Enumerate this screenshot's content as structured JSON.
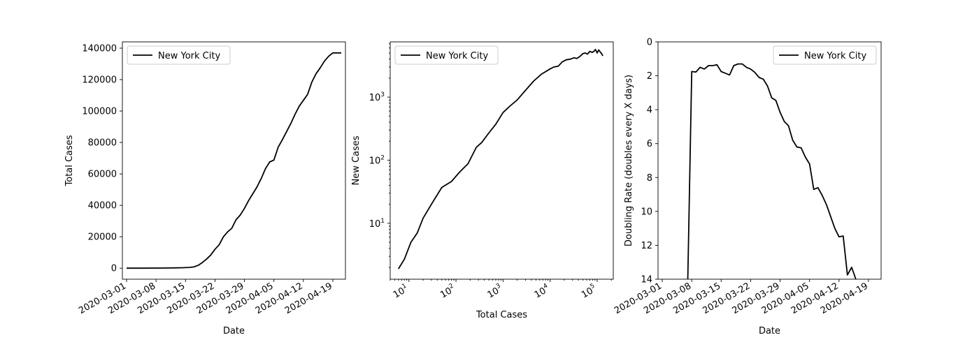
{
  "chart_data": [
    {
      "type": "line",
      "xlabel": "Date",
      "ylabel": "Total Cases",
      "x_scale": "date",
      "y_scale": "linear",
      "xlim": [
        "2020-02-29",
        "2020-04-22"
      ],
      "ylim": [
        -7000,
        144000
      ],
      "x_ticks": [
        "2020-03-01",
        "2020-03-08",
        "2020-03-15",
        "2020-03-22",
        "2020-03-29",
        "2020-04-05",
        "2020-04-12",
        "2020-04-19"
      ],
      "y_ticks": [
        0,
        20000,
        40000,
        60000,
        80000,
        100000,
        120000,
        140000
      ],
      "legend": "top-left",
      "grid": false,
      "series": [
        {
          "name": "New York City",
          "color": "#000000",
          "x": [
            "2020-03-01",
            "2020-03-05",
            "2020-03-10",
            "2020-03-14",
            "2020-03-16",
            "2020-03-17",
            "2020-03-18",
            "2020-03-19",
            "2020-03-20",
            "2020-03-21",
            "2020-03-22",
            "2020-03-23",
            "2020-03-24",
            "2020-03-25",
            "2020-03-26",
            "2020-03-27",
            "2020-03-28",
            "2020-03-29",
            "2020-03-30",
            "2020-03-31",
            "2020-04-01",
            "2020-04-02",
            "2020-04-03",
            "2020-04-04",
            "2020-04-05",
            "2020-04-06",
            "2020-04-07",
            "2020-04-08",
            "2020-04-09",
            "2020-04-10",
            "2020-04-11",
            "2020-04-12",
            "2020-04-13",
            "2020-04-14",
            "2020-04-15",
            "2020-04-16",
            "2020-04-17",
            "2020-04-18",
            "2020-04-19",
            "2020-04-20",
            "2020-04-21"
          ],
          "y": [
            0,
            0,
            100,
            300,
            500,
            800,
            1800,
            3600,
            5800,
            8400,
            12000,
            14900,
            20000,
            23100,
            25400,
            30800,
            33800,
            38000,
            43100,
            47400,
            51800,
            57100,
            63300,
            67600,
            68800,
            76900,
            81700,
            86800,
            92000,
            97800,
            103000,
            106800,
            110500,
            118300,
            123700,
            127500,
            131700,
            134800,
            137000,
            137000,
            137000
          ]
        }
      ]
    },
    {
      "type": "line",
      "xlabel": "Total Cases",
      "ylabel": "New Cases",
      "x_scale": "log",
      "y_scale": "log",
      "xlim": [
        4,
        220000
      ],
      "ylim": [
        1.3,
        7500
      ],
      "x_ticks": [
        10,
        100,
        1000,
        10000,
        100000
      ],
      "y_ticks": [
        10,
        100,
        1000
      ],
      "legend": "top-left",
      "grid": false,
      "series": [
        {
          "name": "New York City",
          "color": "#000000",
          "x": [
            6,
            8,
            11,
            15,
            20,
            30,
            50,
            80,
            120,
            180,
            270,
            350,
            500,
            700,
            1000,
            1400,
            2000,
            3000,
            4500,
            6500,
            10000,
            12000,
            15000,
            18000,
            22000,
            27000,
            32000,
            37000,
            43000,
            50000,
            56000,
            62000,
            70000,
            78000,
            86000,
            92000,
            100000,
            108000,
            116000,
            124000,
            132000
          ],
          "y": [
            1.9,
            2.7,
            5,
            7,
            12,
            20,
            37,
            46,
            65,
            88,
            160,
            190,
            270,
            370,
            570,
            720,
            900,
            1280,
            1800,
            2300,
            2800,
            3000,
            3100,
            3600,
            3900,
            4000,
            4200,
            4100,
            4400,
            4900,
            5000,
            4800,
            5300,
            5100,
            5300,
            5700,
            5000,
            5600,
            5200,
            4900,
            4500
          ]
        }
      ]
    },
    {
      "type": "line",
      "xlabel": "Date",
      "ylabel": "Doubling Rate (doubles every X days)",
      "x_scale": "date",
      "y_scale": "linear",
      "y_inverted": true,
      "xlim": [
        "2020-02-29",
        "2020-04-22"
      ],
      "ylim": [
        0,
        14
      ],
      "x_ticks": [
        "2020-03-01",
        "2020-03-08",
        "2020-03-15",
        "2020-03-22",
        "2020-03-29",
        "2020-04-05",
        "2020-04-12",
        "2020-04-19"
      ],
      "y_ticks": [
        0,
        2,
        4,
        6,
        8,
        10,
        12,
        14
      ],
      "legend": "top-right",
      "grid": false,
      "series": [
        {
          "name": "New York City",
          "color": "#000000",
          "x": [
            "2020-03-07",
            "2020-03-08",
            "2020-03-09",
            "2020-03-10",
            "2020-03-11",
            "2020-03-12",
            "2020-03-13",
            "2020-03-14",
            "2020-03-15",
            "2020-03-16",
            "2020-03-17",
            "2020-03-18",
            "2020-03-19",
            "2020-03-20",
            "2020-03-21",
            "2020-03-22",
            "2020-03-23",
            "2020-03-24",
            "2020-03-25",
            "2020-03-26",
            "2020-03-27",
            "2020-03-28",
            "2020-03-29",
            "2020-03-30",
            "2020-03-31",
            "2020-04-01",
            "2020-04-02",
            "2020-04-03",
            "2020-04-04",
            "2020-04-05",
            "2020-04-06",
            "2020-04-07",
            "2020-04-08",
            "2020-04-09",
            "2020-04-10",
            "2020-04-11",
            "2020-04-12",
            "2020-04-13",
            "2020-04-14",
            "2020-04-15",
            "2020-04-16"
          ],
          "y": [
            15,
            1.75,
            1.78,
            1.5,
            1.6,
            1.4,
            1.4,
            1.35,
            1.75,
            1.85,
            1.95,
            1.4,
            1.3,
            1.3,
            1.5,
            1.6,
            1.8,
            2.1,
            2.2,
            2.6,
            3.3,
            3.45,
            4.15,
            4.7,
            4.95,
            5.8,
            6.2,
            6.25,
            6.8,
            7.2,
            8.7,
            8.6,
            9.05,
            9.6,
            10.3,
            11.0,
            11.5,
            11.45,
            13.75,
            13.3,
            14.0
          ]
        }
      ]
    }
  ]
}
